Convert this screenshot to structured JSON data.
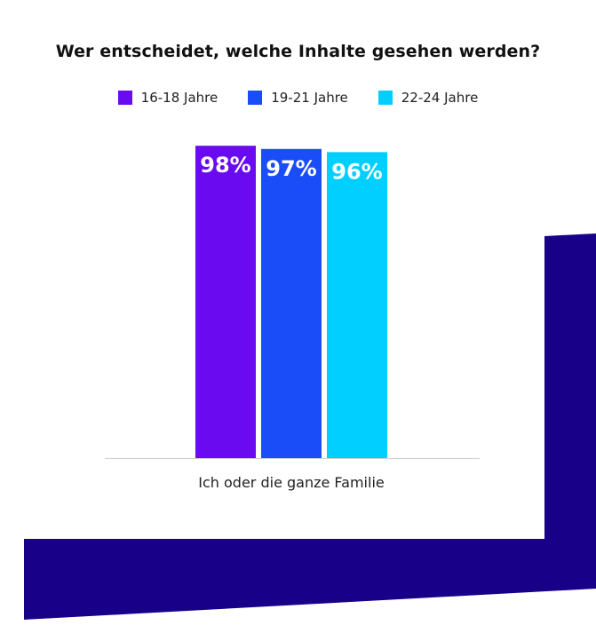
{
  "chart_data": {
    "type": "bar",
    "title": "Wer entscheidet, welche Inhalte gesehen werden?",
    "categories": [
      "Ich oder die ganze Familie"
    ],
    "series": [
      {
        "name": "16-18 Jahre",
        "values": [
          98
        ],
        "color": "#6a0af0",
        "label": "98%"
      },
      {
        "name": "19-21 Jahre",
        "values": [
          97
        ],
        "color": "#1a4df7",
        "label": "97%"
      },
      {
        "name": "22-24 Jahre",
        "values": [
          96
        ],
        "color": "#00cfff",
        "label": "96%"
      }
    ],
    "ylim": [
      0,
      100
    ],
    "legend_position": "top",
    "grid": false
  },
  "decoration": {
    "shape_color": "#180088"
  }
}
